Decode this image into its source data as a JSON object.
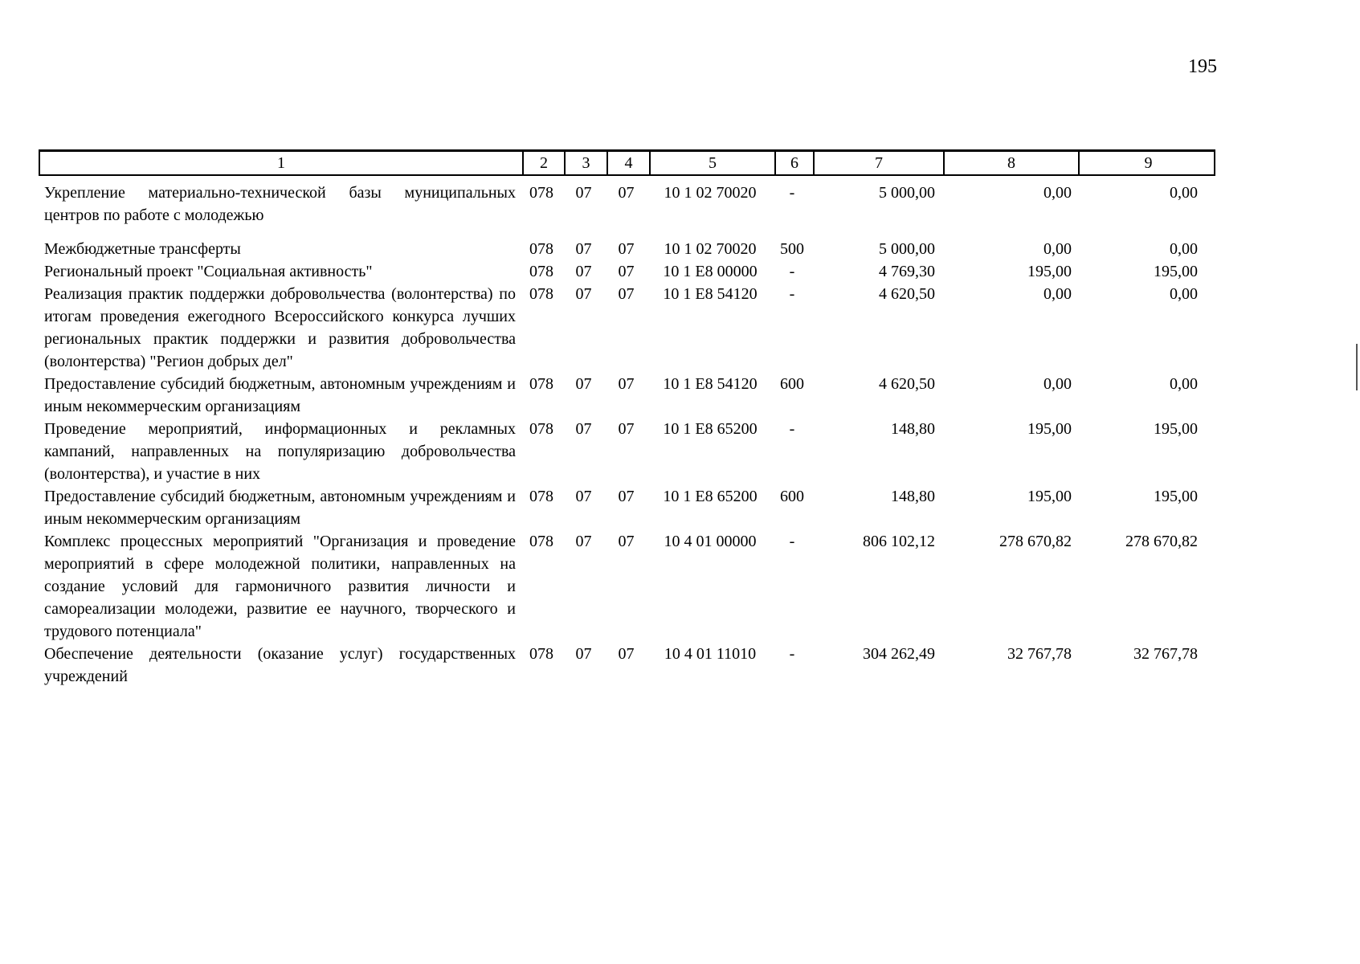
{
  "page": {
    "number": "195"
  },
  "table": {
    "header": [
      "1",
      "2",
      "3",
      "4",
      "5",
      "6",
      "7",
      "8",
      "9"
    ],
    "rows": [
      {
        "name": "Укрепление материально-технической базы муниципальных центров по работе с молодежью",
        "c2": "078",
        "c3": "07",
        "c4": "07",
        "c5": "10 1 02 70020",
        "c6": "-",
        "c7": "5 000,00",
        "c8": "0,00",
        "c9": "0,00"
      },
      {
        "name": "Межбюджетные трансферты",
        "c2": "078",
        "c3": "07",
        "c4": "07",
        "c5": "10 1 02 70020",
        "c6": "500",
        "c7": "5 000,00",
        "c8": "0,00",
        "c9": "0,00"
      },
      {
        "name": "Региональный проект \"Социальная активность\"",
        "c2": "078",
        "c3": "07",
        "c4": "07",
        "c5": "10 1 Е8 00000",
        "c6": "-",
        "c7": "4 769,30",
        "c8": "195,00",
        "c9": "195,00"
      },
      {
        "name": "Реализация практик поддержки добровольчества (волонтерства) по итогам проведения ежегодного Всероссийского конкурса лучших региональных практик поддержки и развития добровольчества (волонтерства) \"Регион добрых дел\"",
        "c2": "078",
        "c3": "07",
        "c4": "07",
        "c5": "10 1 Е8 54120",
        "c6": "-",
        "c7": "4 620,50",
        "c8": "0,00",
        "c9": "0,00"
      },
      {
        "name": "Предоставление субсидий бюджетным, автономным учреждениям и иным некоммерческим организациям",
        "c2": "078",
        "c3": "07",
        "c4": "07",
        "c5": "10 1 Е8 54120",
        "c6": "600",
        "c7": "4 620,50",
        "c8": "0,00",
        "c9": "0,00"
      },
      {
        "name": "Проведение мероприятий, информационных и рекламных кампаний, направленных на популяризацию добровольчества (волонтерства), и участие в них",
        "c2": "078",
        "c3": "07",
        "c4": "07",
        "c5": "10 1 Е8 65200",
        "c6": "-",
        "c7": "148,80",
        "c8": "195,00",
        "c9": "195,00"
      },
      {
        "name": "Предоставление субсидий бюджетным, автономным учреждениям и иным некоммерческим организациям",
        "c2": "078",
        "c3": "07",
        "c4": "07",
        "c5": "10 1 Е8 65200",
        "c6": "600",
        "c7": "148,80",
        "c8": "195,00",
        "c9": "195,00"
      },
      {
        "name": "Комплекс процессных мероприятий \"Организация и проведение мероприятий в сфере молодежной политики, направленных на создание условий для гармоничного развития личности и самореализации молодежи, развитие ее научного, творческого и трудового потенциала\"",
        "c2": "078",
        "c3": "07",
        "c4": "07",
        "c5": "10 4 01 00000",
        "c6": "-",
        "c7": "806 102,12",
        "c8": "278 670,82",
        "c9": "278 670,82"
      },
      {
        "name": "Обеспечение деятельности (оказание услуг) государственных учреждений",
        "c2": "078",
        "c3": "07",
        "c4": "07",
        "c5": "10 4 01 11010",
        "c6": "-",
        "c7": "304 262,49",
        "c8": "32 767,78",
        "c9": "32 767,78"
      }
    ]
  }
}
